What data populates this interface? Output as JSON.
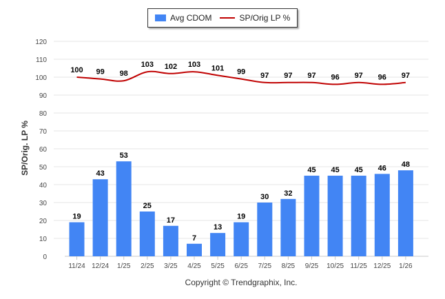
{
  "legend": {
    "bar_label": "Avg CDOM",
    "line_label": "SP/Orig LP %"
  },
  "copyright": "Copyright © Trendgraphix, Inc.",
  "colors": {
    "bar": "#4285f4",
    "line": "#c00000",
    "grid": "#e6e6e6"
  },
  "chart_data": {
    "type": "bar",
    "categories": [
      "11/24",
      "12/24",
      "1/25",
      "2/25",
      "3/25",
      "4/25",
      "5/25",
      "6/25",
      "7/25",
      "8/25",
      "9/25",
      "10/25",
      "11/25",
      "12/25",
      "1/26"
    ],
    "ylabel": "SP/Orig. LP %",
    "ylim": [
      0,
      120
    ],
    "yticks": [
      0,
      10,
      20,
      30,
      40,
      50,
      60,
      70,
      80,
      90,
      100,
      110,
      120
    ],
    "grid": true,
    "legend_position": "top",
    "series": [
      {
        "name": "Avg CDOM",
        "type": "bar",
        "values": [
          19,
          43,
          53,
          25,
          17,
          7,
          13,
          19,
          30,
          32,
          45,
          45,
          45,
          46,
          48
        ]
      },
      {
        "name": "SP/Orig LP %",
        "type": "line",
        "values": [
          100,
          99,
          98,
          103,
          102,
          103,
          101,
          99,
          97,
          97,
          97,
          96,
          97,
          96,
          97
        ]
      }
    ]
  }
}
